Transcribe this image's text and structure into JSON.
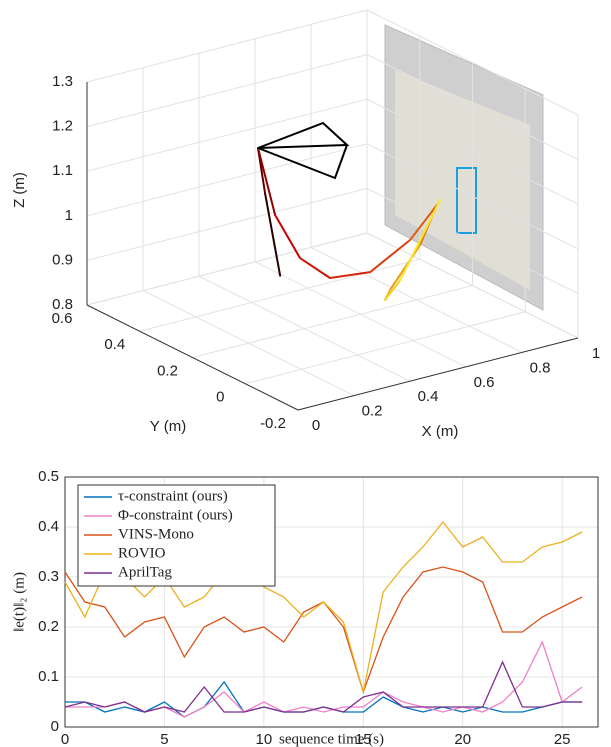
{
  "chart_data": [
    {
      "type": "line3d",
      "xlabel": "X (m)",
      "ylabel": "Y (m)",
      "zlabel": "Z (m)",
      "xlim": [
        0,
        1
      ],
      "ylim": [
        -0.2,
        0.6
      ],
      "zlim": [
        0.8,
        1.3
      ],
      "xticks": [
        0,
        0.2,
        0.4,
        0.6,
        0.8,
        1
      ],
      "yticks": [
        -0.2,
        0,
        0.2,
        0.4,
        0.6
      ],
      "zticks": [
        0.8,
        0.9,
        1,
        1.1,
        1.2,
        1.3
      ],
      "grid": true,
      "trajectory": {
        "x": [
          0.313,
          0.259,
          0.234,
          0.295,
          0.384,
          0.491,
          0.634,
          0.777,
          0.873,
          0.813,
          0.706,
          0.688,
          0.742,
          0.885
        ],
        "y": [
          0.2,
          0.2,
          0.2,
          0.2,
          0.2,
          0.2,
          0.2,
          0.2,
          0.2,
          0.2,
          0.2,
          0.2,
          0.2,
          0.2
        ],
        "z": [
          0.933,
          1.127,
          1.232,
          1.072,
          0.961,
          0.899,
          0.889,
          0.938,
          1.001,
          0.921,
          0.838,
          0.818,
          0.854,
          1.011
        ]
      }
    },
    {
      "type": "line",
      "xlabel": "sequence time (s)",
      "ylabel": "‖e(t)‖₂ (m)",
      "xlim": [
        0,
        26.8
      ],
      "ylim": [
        0,
        0.5
      ],
      "xticks": [
        0,
        5,
        10,
        15,
        20,
        25
      ],
      "yticks": [
        0,
        0.1,
        0.2,
        0.3,
        0.4,
        0.5
      ],
      "grid": true,
      "legend": "upper-left",
      "x": [
        0,
        1,
        2,
        3,
        4,
        5,
        6,
        7,
        8,
        9,
        10,
        11,
        12,
        13,
        14,
        15,
        16,
        17,
        18,
        19,
        20,
        21,
        22,
        23,
        24,
        25,
        26
      ],
      "series": [
        {
          "name": "τ-constraint (ours)",
          "color": "#0072BD",
          "values": [
            0.05,
            0.05,
            0.03,
            0.04,
            0.03,
            0.05,
            0.02,
            0.04,
            0.09,
            0.03,
            0.04,
            0.03,
            0.03,
            0.04,
            0.03,
            0.03,
            0.06,
            0.04,
            0.03,
            0.04,
            0.03,
            0.04,
            0.03,
            0.03,
            0.04,
            0.05,
            0.05
          ]
        },
        {
          "name": "Φ-constraint (ours)",
          "color": "#EE82C8",
          "values": [
            0.04,
            0.04,
            0.04,
            0.05,
            0.03,
            0.04,
            0.02,
            0.04,
            0.07,
            0.03,
            0.05,
            0.03,
            0.04,
            0.03,
            0.04,
            0.04,
            0.07,
            0.05,
            0.04,
            0.03,
            0.04,
            0.03,
            0.05,
            0.09,
            0.17,
            0.05,
            0.08
          ]
        },
        {
          "name": "VINS-Mono",
          "color": "#D95319",
          "values": [
            0.31,
            0.25,
            0.24,
            0.18,
            0.21,
            0.22,
            0.14,
            0.2,
            0.22,
            0.19,
            0.2,
            0.17,
            0.23,
            0.25,
            0.2,
            0.07,
            0.18,
            0.26,
            0.31,
            0.32,
            0.31,
            0.29,
            0.19,
            0.19,
            0.22,
            0.24,
            0.26
          ]
        },
        {
          "name": "ROVIO",
          "color": "#EDB120",
          "values": [
            0.29,
            0.22,
            0.31,
            0.3,
            0.26,
            0.3,
            0.24,
            0.26,
            0.31,
            0.33,
            0.28,
            0.26,
            0.22,
            0.25,
            0.21,
            0.07,
            0.27,
            0.32,
            0.36,
            0.41,
            0.36,
            0.38,
            0.33,
            0.33,
            0.36,
            0.37,
            0.39
          ]
        },
        {
          "name": "AprilTag",
          "color": "#7E2F8E",
          "values": [
            0.04,
            0.05,
            0.04,
            0.05,
            0.03,
            0.04,
            0.03,
            0.08,
            0.03,
            0.03,
            0.04,
            0.03,
            0.03,
            0.04,
            0.03,
            0.06,
            0.07,
            0.04,
            0.04,
            0.04,
            0.04,
            0.04,
            0.13,
            0.04,
            0.04,
            0.05,
            0.05
          ]
        }
      ]
    }
  ]
}
